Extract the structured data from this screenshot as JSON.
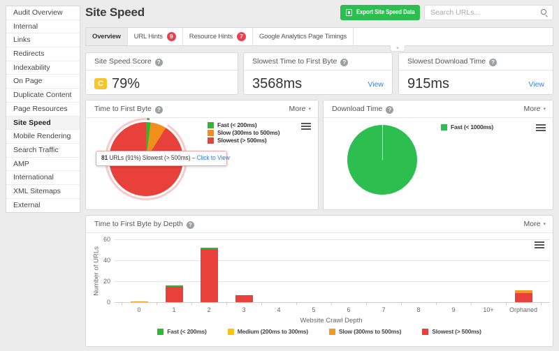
{
  "sidebar": {
    "items": [
      {
        "label": "Audit Overview",
        "active": false
      },
      {
        "label": "Internal",
        "active": false
      },
      {
        "label": "Links",
        "active": false
      },
      {
        "label": "Redirects",
        "active": false
      },
      {
        "label": "Indexability",
        "active": false
      },
      {
        "label": "On Page",
        "active": false
      },
      {
        "label": "Duplicate Content",
        "active": false
      },
      {
        "label": "Page Resources",
        "active": false
      },
      {
        "label": "Site Speed",
        "active": true
      },
      {
        "label": "Mobile Rendering",
        "active": false
      },
      {
        "label": "Search Traffic",
        "active": false
      },
      {
        "label": "AMP",
        "active": false
      },
      {
        "label": "International",
        "active": false
      },
      {
        "label": "XML Sitemaps",
        "active": false
      },
      {
        "label": "External",
        "active": false
      }
    ]
  },
  "header": {
    "title": "Site Speed",
    "export_label": "Export Site Speed Data",
    "search_placeholder": "Search URLs..."
  },
  "tabs": [
    {
      "label": "Overview",
      "active": true,
      "badge": null
    },
    {
      "label": "URL Hints",
      "active": false,
      "badge": "9"
    },
    {
      "label": "Resource Hints",
      "active": false,
      "badge": "7"
    },
    {
      "label": "Google Analytics Page Timings",
      "active": false,
      "badge": null
    }
  ],
  "stats": [
    {
      "title": "Site Speed Score",
      "grade": "C",
      "value": "79%",
      "link": null
    },
    {
      "title": "Slowest Time to First Byte",
      "grade": null,
      "value": "3568ms",
      "link": "View"
    },
    {
      "title": "Slowest Download Time",
      "grade": null,
      "value": "915ms",
      "link": "View"
    }
  ],
  "colors": {
    "green": "#2eb82e",
    "pie_green": "#2dbe50",
    "yellow": "#f6c50f",
    "orange": "#f29a1d",
    "red": "#e8413c",
    "badge_red": "#e8414d",
    "grade_yellow": "#f7c527",
    "link_blue": "#3b82d9"
  },
  "chart_data": [
    {
      "type": "pie",
      "title": "Time to First Byte",
      "menu": "More",
      "slices": [
        {
          "label": "Fast (< 200ms)",
          "value": 2,
          "color": "#2eb82e"
        },
        {
          "label": "Slow (300ms to 500ms)",
          "value": 7,
          "color": "#f28e1c"
        },
        {
          "label": "Slowest (> 500ms)",
          "value": 91,
          "color": "#e8413c",
          "selected": true
        }
      ],
      "tooltip": {
        "bold": "81",
        "text": " URLs (91%) Slowest (> 500ms) – ",
        "link": "Click to View"
      }
    },
    {
      "type": "pie",
      "title": "Download Time",
      "menu": "More",
      "slices": [
        {
          "label": "Fast (< 1000ms)",
          "value": 100,
          "color": "#2dbe50"
        }
      ]
    },
    {
      "type": "bar",
      "title": "Time to First Byte by Depth",
      "menu": "More",
      "xlabel": "Website Crawl Depth",
      "ylabel": "Number of URLs",
      "ylim": [
        0,
        60
      ],
      "yticks": [
        0,
        20,
        40,
        60
      ],
      "categories": [
        "0",
        "1",
        "2",
        "3",
        "4",
        "5",
        "6",
        "7",
        "8",
        "9",
        "10+",
        "Orphaned"
      ],
      "series": [
        {
          "name": "Slowest (> 500ms)",
          "color": "#e8413c",
          "values": [
            0,
            15,
            50.5,
            7,
            0,
            0,
            0,
            0,
            0,
            0,
            0,
            9
          ]
        },
        {
          "name": "Slow (300ms to 500ms)",
          "color": "#f29a1d",
          "values": [
            0.7,
            0,
            0,
            0,
            0,
            0,
            0,
            0,
            0,
            0,
            0,
            2.5
          ]
        },
        {
          "name": "Medium (200ms to 300ms)",
          "color": "#f6c50f",
          "values": [
            0,
            0,
            0,
            0,
            0,
            0,
            0,
            0,
            0,
            0,
            0,
            0
          ]
        },
        {
          "name": "Fast (< 200ms)",
          "color": "#2eb82e",
          "values": [
            0,
            1,
            1.5,
            0,
            0,
            0,
            0,
            0,
            0,
            0,
            0,
            0
          ]
        }
      ],
      "legend_order": [
        "Fast (< 200ms)",
        "Medium (200ms to 300ms)",
        "Slow (300ms to 500ms)",
        "Slowest (> 500ms)"
      ]
    }
  ]
}
